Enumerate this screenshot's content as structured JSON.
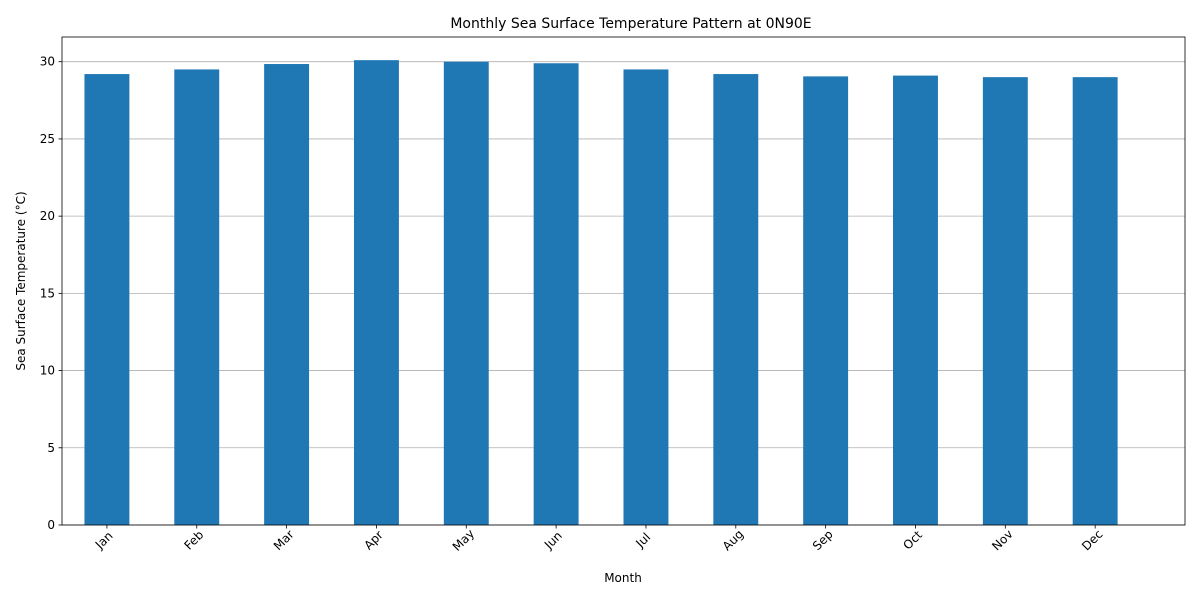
{
  "chart_data": {
    "type": "bar",
    "title": "Monthly Sea Surface Temperature Pattern at 0N90E",
    "xlabel": "Month",
    "ylabel": "Sea Surface Temperature (°C)",
    "categories": [
      "Jan",
      "Feb",
      "Mar",
      "Apr",
      "May",
      "Jun",
      "Jul",
      "Aug",
      "Sep",
      "Oct",
      "Nov",
      "Dec"
    ],
    "values": [
      29.2,
      29.5,
      29.85,
      30.1,
      30.0,
      29.9,
      29.5,
      29.2,
      29.05,
      29.1,
      29.0,
      29.0
    ],
    "ylim": [
      0,
      31.6
    ],
    "yticks": [
      0,
      5,
      10,
      15,
      20,
      25,
      30
    ],
    "grid": "y-axis",
    "bar_color": "#1f77b4",
    "grid_color": "#b0b0b0"
  }
}
